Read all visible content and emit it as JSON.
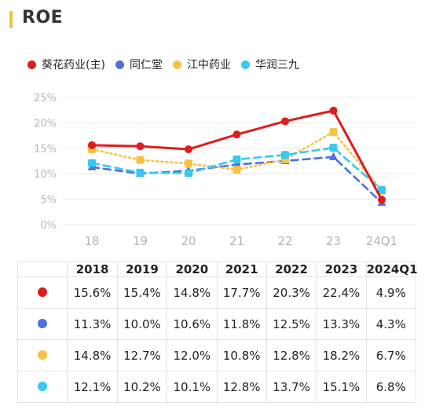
{
  "title": "ROE",
  "colors": {
    "title_accent": "#f2c23c",
    "grid": "#e8e8e8",
    "axis_text": "#b5b5b5"
  },
  "chart_data": {
    "type": "line",
    "title": "ROE",
    "x": [
      "18",
      "19",
      "20",
      "21",
      "22",
      "23",
      "24Q1"
    ],
    "ylim": [
      0,
      25
    ],
    "yticks": [
      "0%",
      "5%",
      "10%",
      "15%",
      "20%",
      "25%"
    ],
    "ytick_values": [
      0,
      5,
      10,
      15,
      20,
      25
    ],
    "grid": true,
    "legend": "top-left",
    "series": [
      {
        "name": "葵花药业(主)",
        "color": "#e01c1c",
        "style": "solid",
        "marker": "circle",
        "values": [
          15.6,
          15.4,
          14.8,
          17.7,
          20.3,
          22.4,
          4.9
        ]
      },
      {
        "name": "同仁堂",
        "color": "#4e6fe0",
        "style": "dashed",
        "marker": "triangle",
        "values": [
          11.3,
          10.0,
          10.6,
          11.8,
          12.5,
          13.3,
          4.3
        ]
      },
      {
        "name": "江中药业",
        "color": "#f5c242",
        "style": "dotted",
        "marker": "square",
        "values": [
          14.8,
          12.7,
          12.0,
          10.8,
          12.8,
          18.2,
          6.7
        ]
      },
      {
        "name": "华润三九",
        "color": "#36c8ef",
        "style": "dashed",
        "marker": "square",
        "values": [
          12.1,
          10.2,
          10.1,
          12.8,
          13.7,
          15.1,
          6.8
        ]
      }
    ]
  },
  "table": {
    "headers": [
      "2018",
      "2019",
      "2020",
      "2021",
      "2022",
      "2023",
      "2024Q1"
    ],
    "rows": [
      {
        "color": "#e01c1c",
        "cells": [
          "15.6%",
          "15.4%",
          "14.8%",
          "17.7%",
          "20.3%",
          "22.4%",
          "4.9%"
        ]
      },
      {
        "color": "#4e6fe0",
        "cells": [
          "11.3%",
          "10.0%",
          "10.6%",
          "11.8%",
          "12.5%",
          "13.3%",
          "4.3%"
        ]
      },
      {
        "color": "#f5c242",
        "cells": [
          "14.8%",
          "12.7%",
          "12.0%",
          "10.8%",
          "12.8%",
          "18.2%",
          "6.7%"
        ]
      },
      {
        "color": "#36c8ef",
        "cells": [
          "12.1%",
          "10.2%",
          "10.1%",
          "12.8%",
          "13.7%",
          "15.1%",
          "6.8%"
        ]
      }
    ]
  }
}
